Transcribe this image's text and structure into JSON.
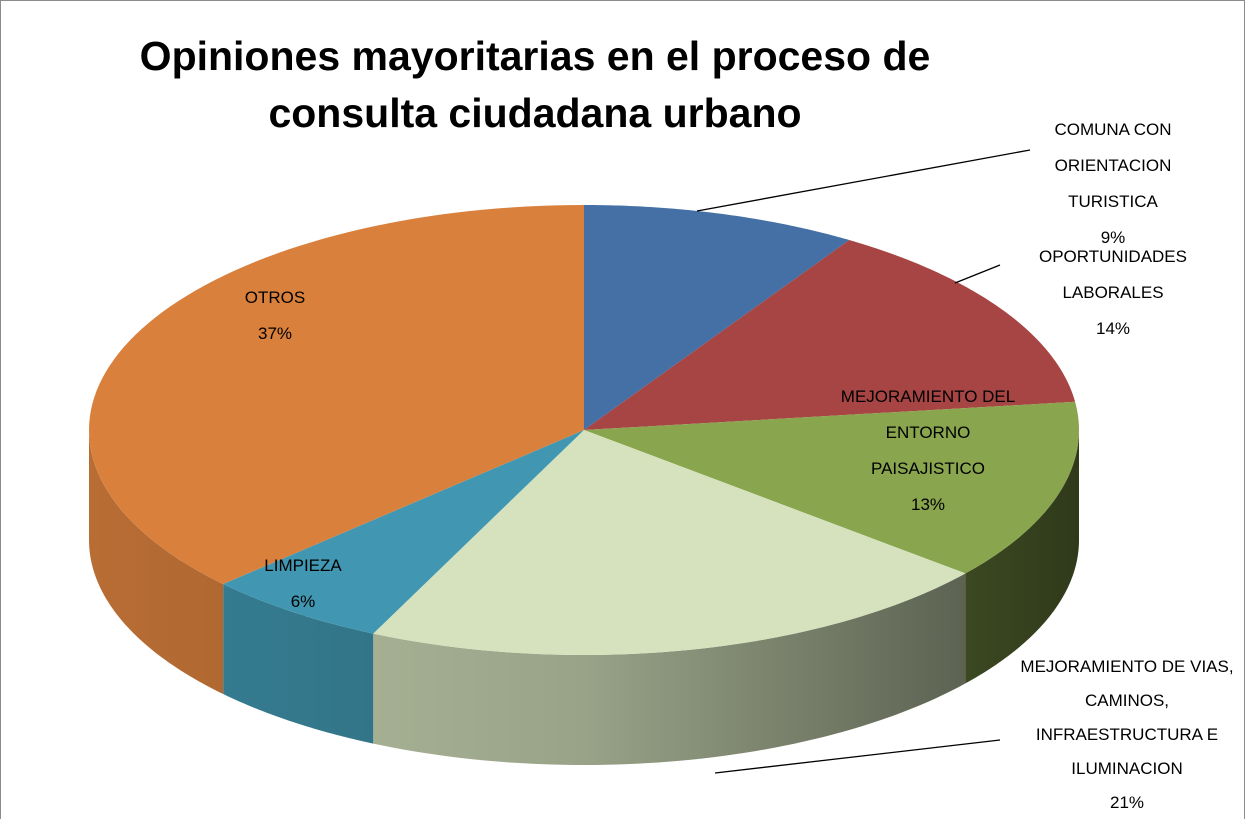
{
  "chart_data": {
    "type": "pie3d",
    "title": "Opiniones mayoritarias en el proceso de consulta ciudadana urbano",
    "categories": [
      "COMUNA CON ORIENTACION TURISTICA",
      "OPORTUNIDADES LABORALES",
      "MEJORAMIENTO DEL ENTORNO PAISAJISTICO",
      "MEJORAMIENTO DE VIAS, CAMINOS, INFRAESTRUCTURA E ILUMINACION",
      "LIMPIEZA",
      "OTROS"
    ],
    "values": [
      9,
      14,
      13,
      21,
      6,
      37
    ],
    "value_labels": [
      "9%",
      "14%",
      "13%",
      "21%",
      "6%",
      "37%"
    ],
    "colors": [
      "#4470a6",
      "#a74444",
      "#89a54e",
      "#d5e2bd",
      "#4197b1",
      "#d9803d"
    ]
  }
}
